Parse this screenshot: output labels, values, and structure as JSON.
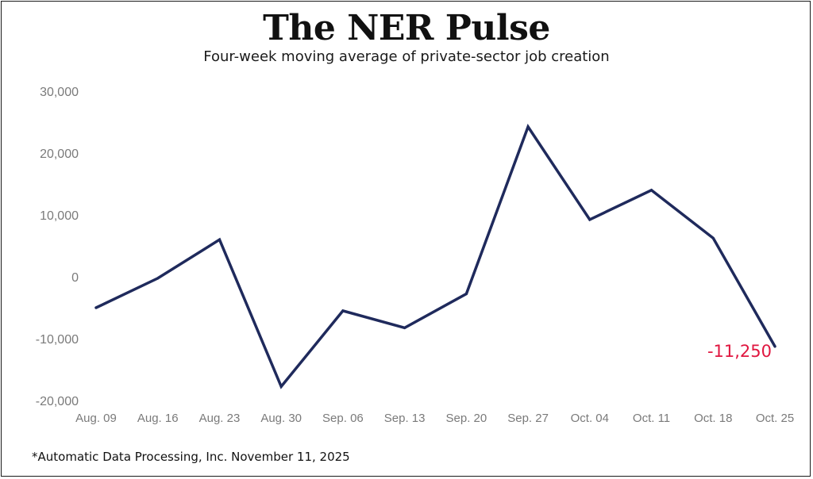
{
  "header": {
    "title": "The NER Pulse",
    "subtitle": "Four-week moving average of private-sector job creation"
  },
  "footer": {
    "source": "*Automatic Data Processing, Inc. November 11, 2025"
  },
  "colors": {
    "line": "#1f2a5c",
    "end_label": "#e0163f",
    "tick_text": "#7a7a7a"
  },
  "chart_data": {
    "type": "line",
    "title": "The NER Pulse",
    "subtitle": "Four-week moving average of private-sector job creation",
    "xlabel": "",
    "ylabel": "",
    "ylim": [
      -20000,
      30000
    ],
    "yticks": [
      30000,
      20000,
      10000,
      0,
      -10000,
      -20000
    ],
    "ytick_labels": [
      "30,000",
      "20,000",
      "10,000",
      "0",
      "-10,000",
      "-20,000"
    ],
    "categories": [
      "Aug. 09",
      "Aug. 16",
      "Aug. 23",
      "Aug. 30",
      "Sep. 06",
      "Sep. 13",
      "Sep. 20",
      "Sep. 27",
      "Oct. 04",
      "Oct. 11",
      "Oct. 18",
      "Oct. 25"
    ],
    "series": [
      {
        "name": "Four-week moving average",
        "values": [
          -5000,
          -250,
          6000,
          -17750,
          -5500,
          -8250,
          -2750,
          24250,
          9250,
          14000,
          6250,
          -11250
        ]
      }
    ],
    "annotations": [
      {
        "category": "Oct. 25",
        "text": "-11,250"
      }
    ],
    "grid": false,
    "legend": "none"
  }
}
